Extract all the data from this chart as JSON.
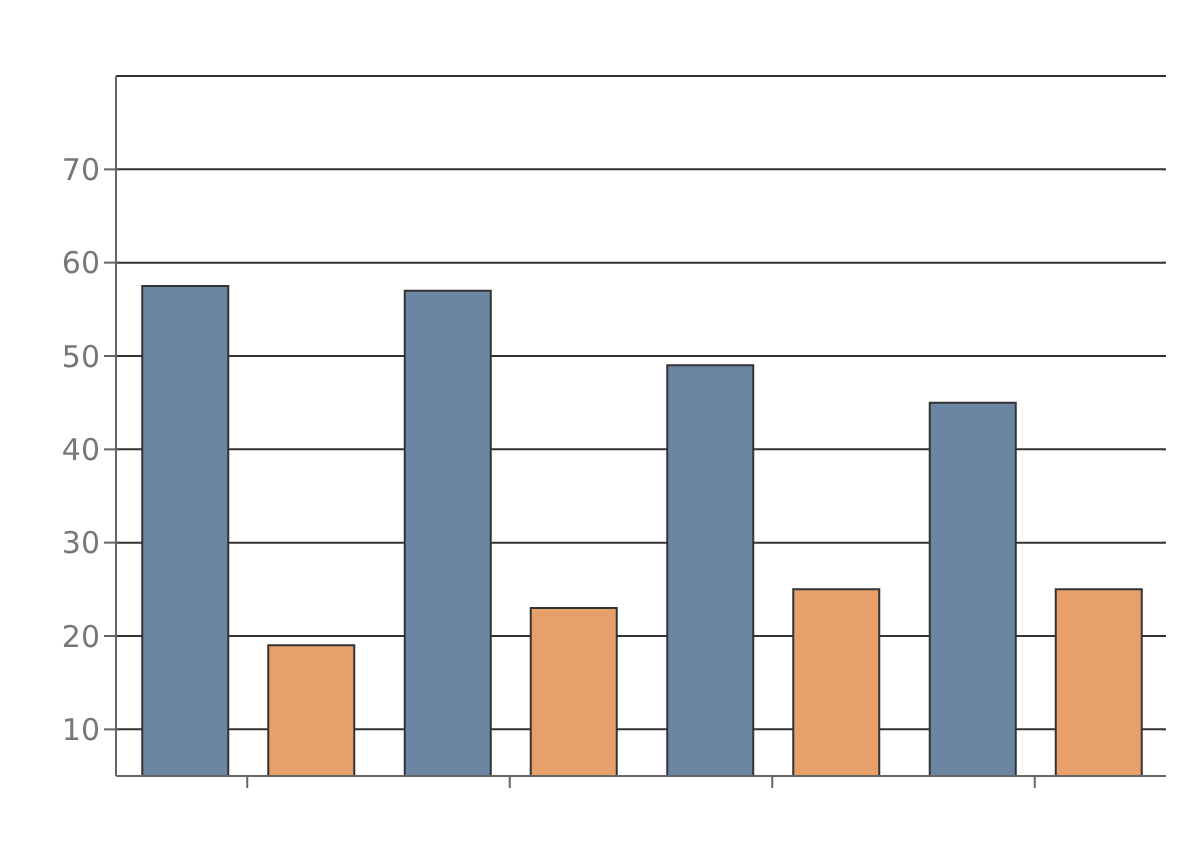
{
  "chart_data": {
    "type": "bar",
    "categories": [
      null,
      null,
      null,
      null
    ],
    "series": [
      {
        "color": "#6a86a3",
        "values": [
          57.5,
          57,
          49,
          45
        ]
      },
      {
        "color": "#e8a06a",
        "values": [
          19,
          23,
          25,
          25
        ]
      }
    ],
    "ylim": [
      5,
      80
    ],
    "yticks": [
      10,
      20,
      30,
      40,
      50,
      60,
      70
    ],
    "grid": "y",
    "legend": false
  }
}
